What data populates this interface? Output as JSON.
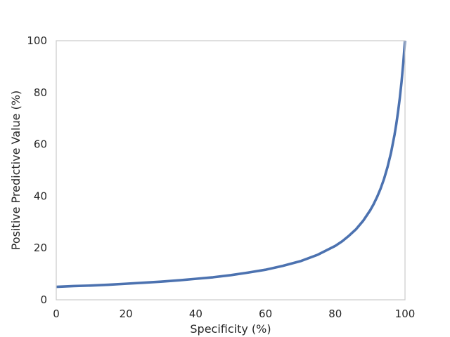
{
  "chart_data": {
    "type": "line",
    "title": "",
    "xlabel": "Specificity (%)",
    "ylabel": "Positive Predictive Value (%)",
    "xlim": [
      0,
      100
    ],
    "ylim": [
      0,
      100
    ],
    "xticks": [
      0,
      20,
      40,
      60,
      80,
      100
    ],
    "yticks": [
      0,
      20,
      40,
      60,
      80,
      100
    ],
    "grid": false,
    "legend": "none",
    "series": [
      {
        "color": "#4c72b0",
        "x": [
          0,
          5,
          10,
          15,
          20,
          25,
          30,
          35,
          40,
          45,
          50,
          55,
          60,
          65,
          70,
          75,
          80,
          82,
          84,
          86,
          88,
          90,
          91,
          92,
          93,
          94,
          95,
          96,
          97,
          97.5,
          98,
          98.5,
          99,
          99.5,
          100
        ],
        "y": [
          5.0,
          5.3,
          5.5,
          5.8,
          6.2,
          6.6,
          7.0,
          7.5,
          8.1,
          8.7,
          9.5,
          10.5,
          11.6,
          13.1,
          14.9,
          17.4,
          20.8,
          22.6,
          24.8,
          27.3,
          30.5,
          34.5,
          36.9,
          39.7,
          42.9,
          46.7,
          51.3,
          56.8,
          63.7,
          67.8,
          72.5,
          77.8,
          84.0,
          91.3,
          100.0
        ]
      }
    ]
  }
}
